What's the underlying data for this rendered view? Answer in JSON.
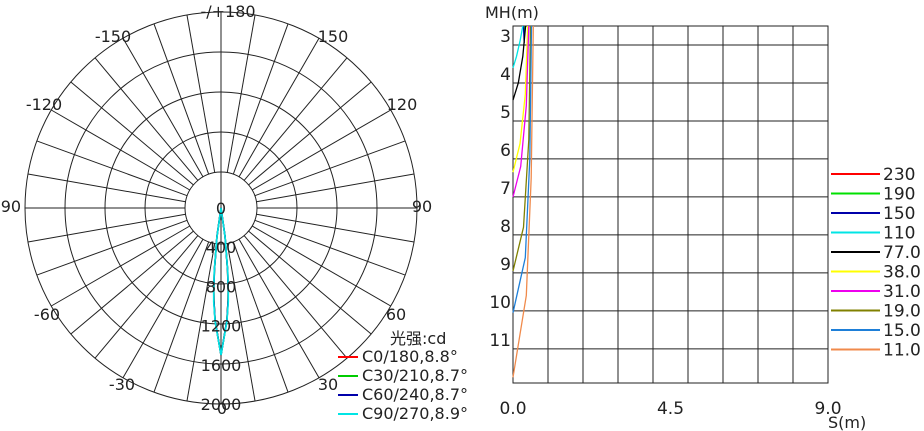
{
  "chart_data": [
    {
      "type": "polar",
      "subtitle": "光强:cd",
      "angle_labels": [
        "-/+180",
        "-150",
        "150",
        "-120",
        "120",
        "-90",
        "90",
        "-60",
        "60",
        "-30",
        "30",
        "0"
      ],
      "radial_labels": [
        "0",
        "400",
        "800",
        "1200",
        "1600",
        "2000"
      ],
      "rlim": [
        0,
        2000
      ],
      "series": [
        {
          "name": "C0/180,8.8°",
          "color": "#ff0000",
          "angles": [
            -12,
            -8,
            -6,
            -5,
            -4.4,
            -3,
            0,
            3,
            4.4,
            5,
            6,
            8,
            12
          ],
          "values": [
            0,
            300,
            650,
            850,
            950,
            1150,
            1500,
            1150,
            950,
            850,
            650,
            300,
            0
          ]
        },
        {
          "name": "C30/210,8.7°",
          "color": "#00cc00",
          "angles": [
            -12,
            -8,
            -6,
            -5,
            -4.35,
            -3,
            0,
            3,
            4.35,
            5,
            6,
            8,
            12
          ],
          "values": [
            0,
            290,
            640,
            840,
            950,
            1150,
            1500,
            1150,
            950,
            840,
            640,
            290,
            0
          ]
        },
        {
          "name": "C60/240,8.7°",
          "color": "#0000aa",
          "angles": [
            -12,
            -8,
            -6,
            -5,
            -4.35,
            -3,
            0,
            3,
            4.35,
            5,
            6,
            8,
            12
          ],
          "values": [
            0,
            290,
            640,
            840,
            950,
            1150,
            1500,
            1150,
            950,
            840,
            640,
            290,
            0
          ]
        },
        {
          "name": "C90/270,8.9°",
          "color": "#00e5e5",
          "angles": [
            -12,
            -8,
            -6,
            -5,
            -4.45,
            -3,
            0,
            3,
            4.45,
            5,
            6,
            8,
            12
          ],
          "values": [
            0,
            310,
            660,
            860,
            960,
            1160,
            1500,
            1160,
            960,
            860,
            660,
            310,
            0
          ]
        }
      ],
      "grid": true
    },
    {
      "type": "line",
      "ylabel": "MH(m)",
      "xlabel": "S(m)",
      "x_tick_labels": [
        "0.0",
        "4.5",
        "9.0"
      ],
      "y_tick_labels": [
        "3",
        "4",
        "5",
        "6",
        "7",
        "8",
        "9",
        "10",
        "11"
      ],
      "xlim": [
        0,
        9
      ],
      "ylim": [
        2.5,
        11.9
      ],
      "grid": true,
      "legend_position": "right",
      "series": [
        {
          "name": "230",
          "color": "#ff0000",
          "x": [
            0.34,
            0.34
          ],
          "y": [
            2.5,
            2.6
          ]
        },
        {
          "name": "190",
          "color": "#00e000",
          "x": [
            0.32,
            0.33
          ],
          "y": [
            2.5,
            2.75
          ]
        },
        {
          "name": "150",
          "color": "#0000aa",
          "x": [
            0.3,
            0.32
          ],
          "y": [
            2.5,
            2.95
          ]
        },
        {
          "name": "110",
          "color": "#00e5e5",
          "x": [
            0.0,
            0.1,
            0.2,
            0.28
          ],
          "y": [
            3.6,
            3.3,
            2.9,
            2.5
          ]
        },
        {
          "name": "77.0",
          "color": "#000000",
          "x": [
            0.0,
            0.15,
            0.28,
            0.36
          ],
          "y": [
            4.45,
            4.0,
            3.3,
            2.5
          ]
        },
        {
          "name": "38.0",
          "color": "#ffff00",
          "x": [
            0.0,
            0.2,
            0.35,
            0.42
          ],
          "y": [
            6.35,
            5.6,
            4.3,
            2.5
          ]
        },
        {
          "name": "31.0",
          "color": "#ee00ee",
          "x": [
            0.0,
            0.22,
            0.38,
            0.45
          ],
          "y": [
            7.0,
            6.2,
            4.6,
            2.5
          ]
        },
        {
          "name": "19.0",
          "color": "#808000",
          "x": [
            0.0,
            0.3,
            0.45,
            0.5
          ],
          "y": [
            8.95,
            7.8,
            5.5,
            2.5
          ]
        },
        {
          "name": "15.0",
          "color": "#1e7fd8",
          "x": [
            0.0,
            0.35,
            0.48,
            0.53
          ],
          "y": [
            10.05,
            8.6,
            6.0,
            2.5
          ]
        },
        {
          "name": "11.0",
          "color": "#f08a4b",
          "x": [
            0.0,
            0.38,
            0.52,
            0.58
          ],
          "y": [
            11.75,
            9.6,
            6.5,
            2.5
          ]
        }
      ]
    }
  ]
}
